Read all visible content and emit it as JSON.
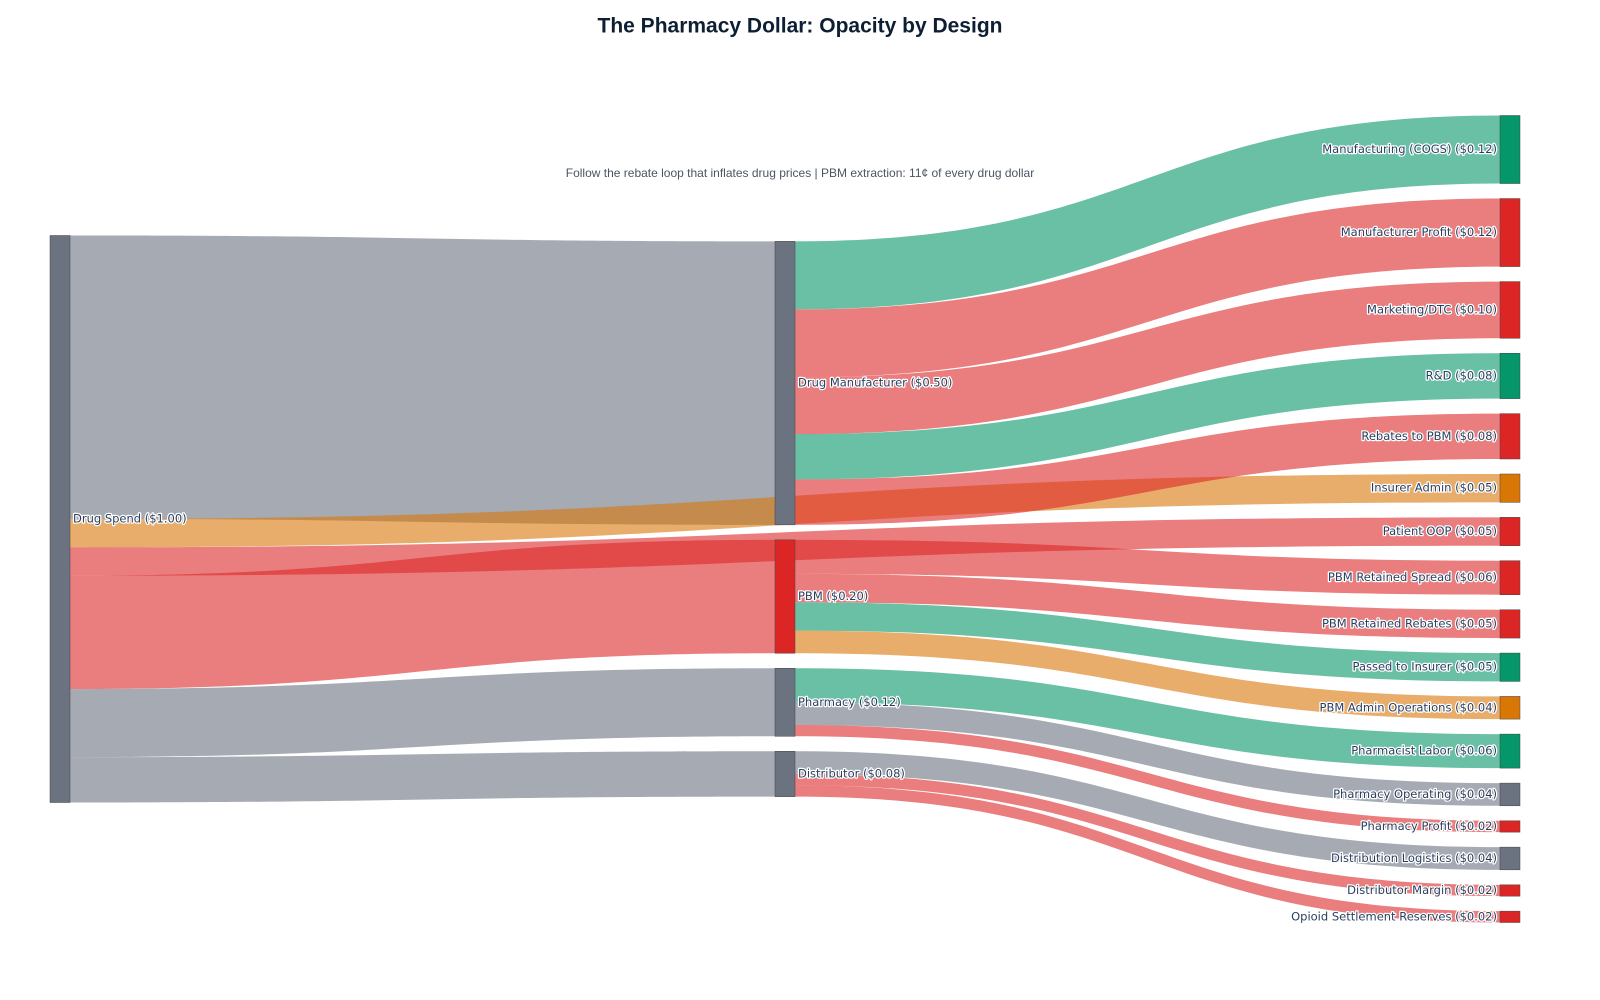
{
  "chart_data": {
    "type": "sankey",
    "title": "The Pharmacy Dollar: Opacity by Design",
    "subtitle": "Follow the rebate loop that inflates drug prices | PBM extraction: 11¢ of every drug dollar",
    "nodes": [
      {
        "label": "Drug Spend ($1.00)",
        "color": "#6b7280"
      },
      {
        "label": "Drug Manufacturer ($0.50)",
        "color": "#6b7280"
      },
      {
        "label": "PBM ($0.20)",
        "color": "#dc2626"
      },
      {
        "label": "Pharmacy ($0.12)",
        "color": "#6b7280"
      },
      {
        "label": "Distributor ($0.08)",
        "color": "#6b7280"
      },
      {
        "label": "Manufacturing (COGS) ($0.12)",
        "color": "#059669"
      },
      {
        "label": "Manufacturer Profit ($0.12)",
        "color": "#dc2626"
      },
      {
        "label": "Marketing/DTC ($0.10)",
        "color": "#dc2626"
      },
      {
        "label": "R&D ($0.08)",
        "color": "#059669"
      },
      {
        "label": "Rebates to PBM ($0.08)",
        "color": "#dc2626"
      },
      {
        "label": "Insurer Admin ($0.05)",
        "color": "#d97706"
      },
      {
        "label": "Patient OOP ($0.05)",
        "color": "#dc2626"
      },
      {
        "label": "PBM Retained Spread ($0.06)",
        "color": "#dc2626"
      },
      {
        "label": "PBM Retained Rebates ($0.05)",
        "color": "#dc2626"
      },
      {
        "label": "Passed to Insurer ($0.05)",
        "color": "#059669"
      },
      {
        "label": "PBM Admin Operations ($0.04)",
        "color": "#d97706"
      },
      {
        "label": "Pharmacist Labor ($0.06)",
        "color": "#059669"
      },
      {
        "label": "Pharmacy Operating ($0.04)",
        "color": "#6b7280"
      },
      {
        "label": "Pharmacy Profit ($0.02)",
        "color": "#dc2626"
      },
      {
        "label": "Distribution Logistics ($0.04)",
        "color": "#6b7280"
      },
      {
        "label": "Distributor Margin ($0.02)",
        "color": "#dc2626"
      },
      {
        "label": "Opioid Settlement Reserves ($0.02)",
        "color": "#dc2626"
      }
    ],
    "links": [
      {
        "source": 0,
        "target": 1,
        "value": 0.5,
        "color": "rgba(107,114,128,0.6)"
      },
      {
        "source": 0,
        "target": 10,
        "value": 0.05,
        "color": "rgba(217,119,6,0.6)"
      },
      {
        "source": 0,
        "target": 11,
        "value": 0.05,
        "color": "rgba(220,38,38,0.6)"
      },
      {
        "source": 0,
        "target": 2,
        "value": 0.2,
        "color": "rgba(220,38,38,0.6)"
      },
      {
        "source": 0,
        "target": 3,
        "value": 0.12,
        "color": "rgba(107,114,128,0.6)"
      },
      {
        "source": 0,
        "target": 4,
        "value": 0.08,
        "color": "rgba(107,114,128,0.6)"
      },
      {
        "source": 1,
        "target": 5,
        "value": 0.12,
        "color": "rgba(5,150,105,0.6)"
      },
      {
        "source": 1,
        "target": 6,
        "value": 0.12,
        "color": "rgba(220,38,38,0.6)"
      },
      {
        "source": 1,
        "target": 7,
        "value": 0.1,
        "color": "rgba(220,38,38,0.6)"
      },
      {
        "source": 1,
        "target": 8,
        "value": 0.08,
        "color": "rgba(5,150,105,0.6)"
      },
      {
        "source": 1,
        "target": 9,
        "value": 0.08,
        "color": "rgba(220,38,38,0.6)"
      },
      {
        "source": 2,
        "target": 12,
        "value": 0.06,
        "color": "rgba(220,38,38,0.6)"
      },
      {
        "source": 2,
        "target": 13,
        "value": 0.05,
        "color": "rgba(220,38,38,0.6)"
      },
      {
        "source": 2,
        "target": 14,
        "value": 0.05,
        "color": "rgba(5,150,105,0.6)"
      },
      {
        "source": 2,
        "target": 15,
        "value": 0.04,
        "color": "rgba(217,119,6,0.6)"
      },
      {
        "source": 3,
        "target": 16,
        "value": 0.06,
        "color": "rgba(5,150,105,0.6)"
      },
      {
        "source": 3,
        "target": 17,
        "value": 0.04,
        "color": "rgba(107,114,128,0.6)"
      },
      {
        "source": 3,
        "target": 18,
        "value": 0.02,
        "color": "rgba(220,38,38,0.6)"
      },
      {
        "source": 4,
        "target": 19,
        "value": 0.04,
        "color": "rgba(107,114,128,0.6)"
      },
      {
        "source": 4,
        "target": 20,
        "value": 0.02,
        "color": "rgba(220,38,38,0.6)"
      },
      {
        "source": 4,
        "target": 21,
        "value": 0.02,
        "color": "rgba(220,38,38,0.6)"
      }
    ]
  }
}
